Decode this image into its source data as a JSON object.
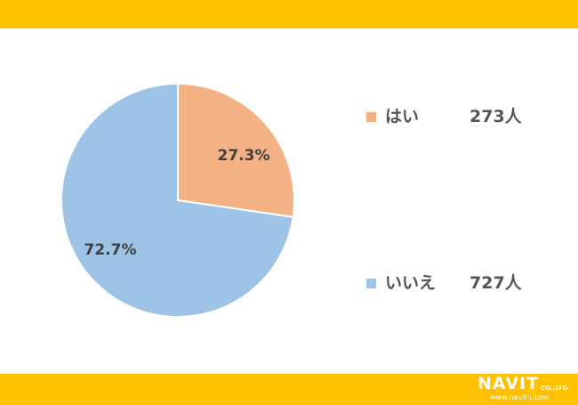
{
  "chart_data": {
    "type": "pie",
    "start": "top",
    "direction": "clockwise",
    "slices": [
      {
        "name": "はい",
        "value": 27.3,
        "label": "27.3%",
        "count": "273人",
        "color": "#F4B183"
      },
      {
        "name": "いいえ",
        "value": 72.7,
        "label": "72.7%",
        "count": "727人",
        "color": "#9DC3E6"
      }
    ],
    "legend": "right"
  },
  "frame": {
    "bar_color": "#FFC000"
  },
  "logo": {
    "name": "NAVIT",
    "suffix": "CO.,LTD.",
    "url": "www.navit-j.com"
  }
}
